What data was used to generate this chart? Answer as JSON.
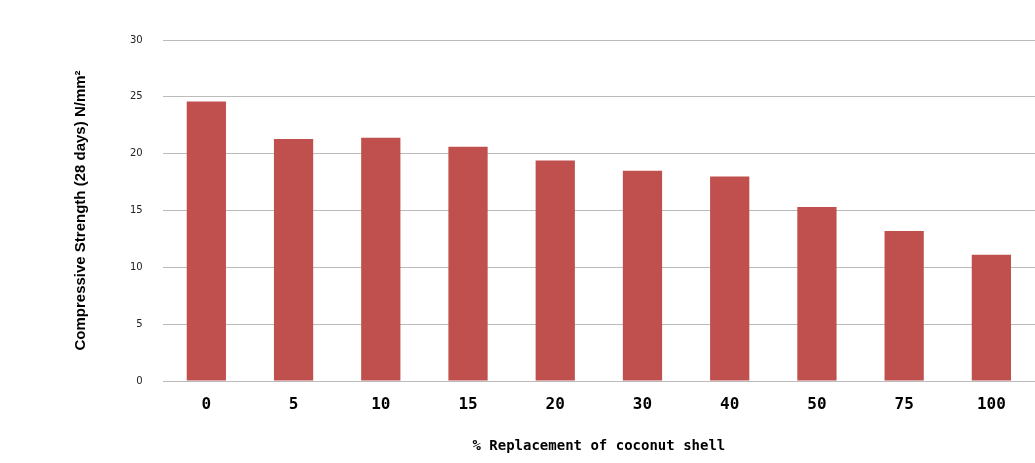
{
  "chart_data": {
    "type": "bar",
    "xlabel": "% Replacement of coconut shell",
    "ylabel": "Compressive Strength (28 days) N/mm²",
    "categories": [
      "0",
      "5",
      "10",
      "15",
      "20",
      "30",
      "40",
      "50",
      "75",
      "100"
    ],
    "values": [
      24.6,
      21.3,
      21.4,
      20.6,
      19.4,
      18.5,
      18.0,
      15.3,
      13.2,
      11.1
    ],
    "color": "#c0504d",
    "ylim": [
      0,
      30
    ],
    "yticks": [
      0,
      5,
      10,
      15,
      20,
      25,
      30
    ],
    "grid": "y"
  }
}
